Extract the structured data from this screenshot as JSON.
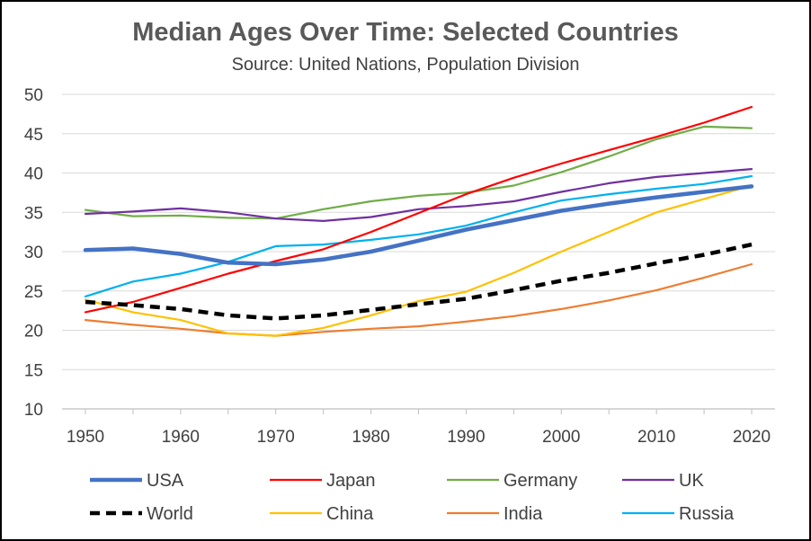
{
  "chart_data": {
    "type": "line",
    "title": "Median Ages Over Time:  Selected Countries",
    "subtitle": "Source:  United Nations, Population Division",
    "xlabel": "",
    "ylabel": "",
    "xlim": [
      1950,
      2020
    ],
    "ylim": [
      10,
      50
    ],
    "xticks": [
      1950,
      1960,
      1970,
      1980,
      1990,
      2000,
      2010,
      2020
    ],
    "yticks": [
      10,
      15,
      20,
      25,
      30,
      35,
      40,
      45,
      50
    ],
    "grid": "horizontal",
    "legend_position": "bottom",
    "x": [
      1950,
      1955,
      1960,
      1965,
      1970,
      1975,
      1980,
      1985,
      1990,
      1995,
      2000,
      2005,
      2010,
      2015,
      2020
    ],
    "series": [
      {
        "name": "USA",
        "color": "#4472C4",
        "style": "thick",
        "values": [
          30.2,
          30.4,
          29.7,
          28.6,
          28.4,
          29.0,
          30.0,
          31.4,
          32.8,
          34.0,
          35.2,
          36.1,
          36.9,
          37.6,
          38.3
        ]
      },
      {
        "name": "Japan",
        "color": "#FF0000",
        "style": "solid",
        "values": [
          22.3,
          23.6,
          25.4,
          27.2,
          28.8,
          30.3,
          32.5,
          34.9,
          37.3,
          39.4,
          41.2,
          42.9,
          44.6,
          46.4,
          48.4
        ]
      },
      {
        "name": "Germany",
        "color": "#70AD47",
        "style": "solid",
        "values": [
          35.3,
          34.5,
          34.6,
          34.3,
          34.2,
          35.4,
          36.4,
          37.1,
          37.5,
          38.4,
          40.1,
          42.1,
          44.3,
          45.9,
          45.7
        ]
      },
      {
        "name": "UK",
        "color": "#7030A0",
        "style": "solid",
        "values": [
          34.8,
          35.1,
          35.5,
          35.0,
          34.2,
          33.9,
          34.4,
          35.4,
          35.8,
          36.4,
          37.6,
          38.7,
          39.5,
          40.0,
          40.5
        ]
      },
      {
        "name": "World",
        "color": "#000000",
        "style": "dashed",
        "values": [
          23.6,
          23.2,
          22.7,
          21.9,
          21.5,
          21.9,
          22.6,
          23.3,
          24.0,
          25.1,
          26.3,
          27.3,
          28.5,
          29.6,
          30.9
        ]
      },
      {
        "name": "China",
        "color": "#FFC000",
        "style": "solid",
        "values": [
          23.9,
          22.3,
          21.3,
          19.6,
          19.3,
          20.3,
          21.9,
          23.7,
          24.9,
          27.3,
          30.0,
          32.5,
          35.0,
          36.7,
          38.4
        ]
      },
      {
        "name": "India",
        "color": "#ED7D31",
        "style": "solid",
        "values": [
          21.3,
          20.7,
          20.2,
          19.6,
          19.3,
          19.8,
          20.2,
          20.5,
          21.1,
          21.8,
          22.7,
          23.8,
          25.1,
          26.7,
          28.4
        ]
      },
      {
        "name": "Russia",
        "color": "#00B0F0",
        "style": "solid",
        "values": [
          24.3,
          26.2,
          27.2,
          28.7,
          30.7,
          30.9,
          31.5,
          32.2,
          33.3,
          35.0,
          36.5,
          37.3,
          38.0,
          38.6,
          39.6
        ]
      }
    ],
    "legend_rows": [
      [
        "USA",
        "Japan",
        "Germany",
        "UK"
      ],
      [
        "World",
        "China",
        "India",
        "Russia"
      ]
    ]
  }
}
